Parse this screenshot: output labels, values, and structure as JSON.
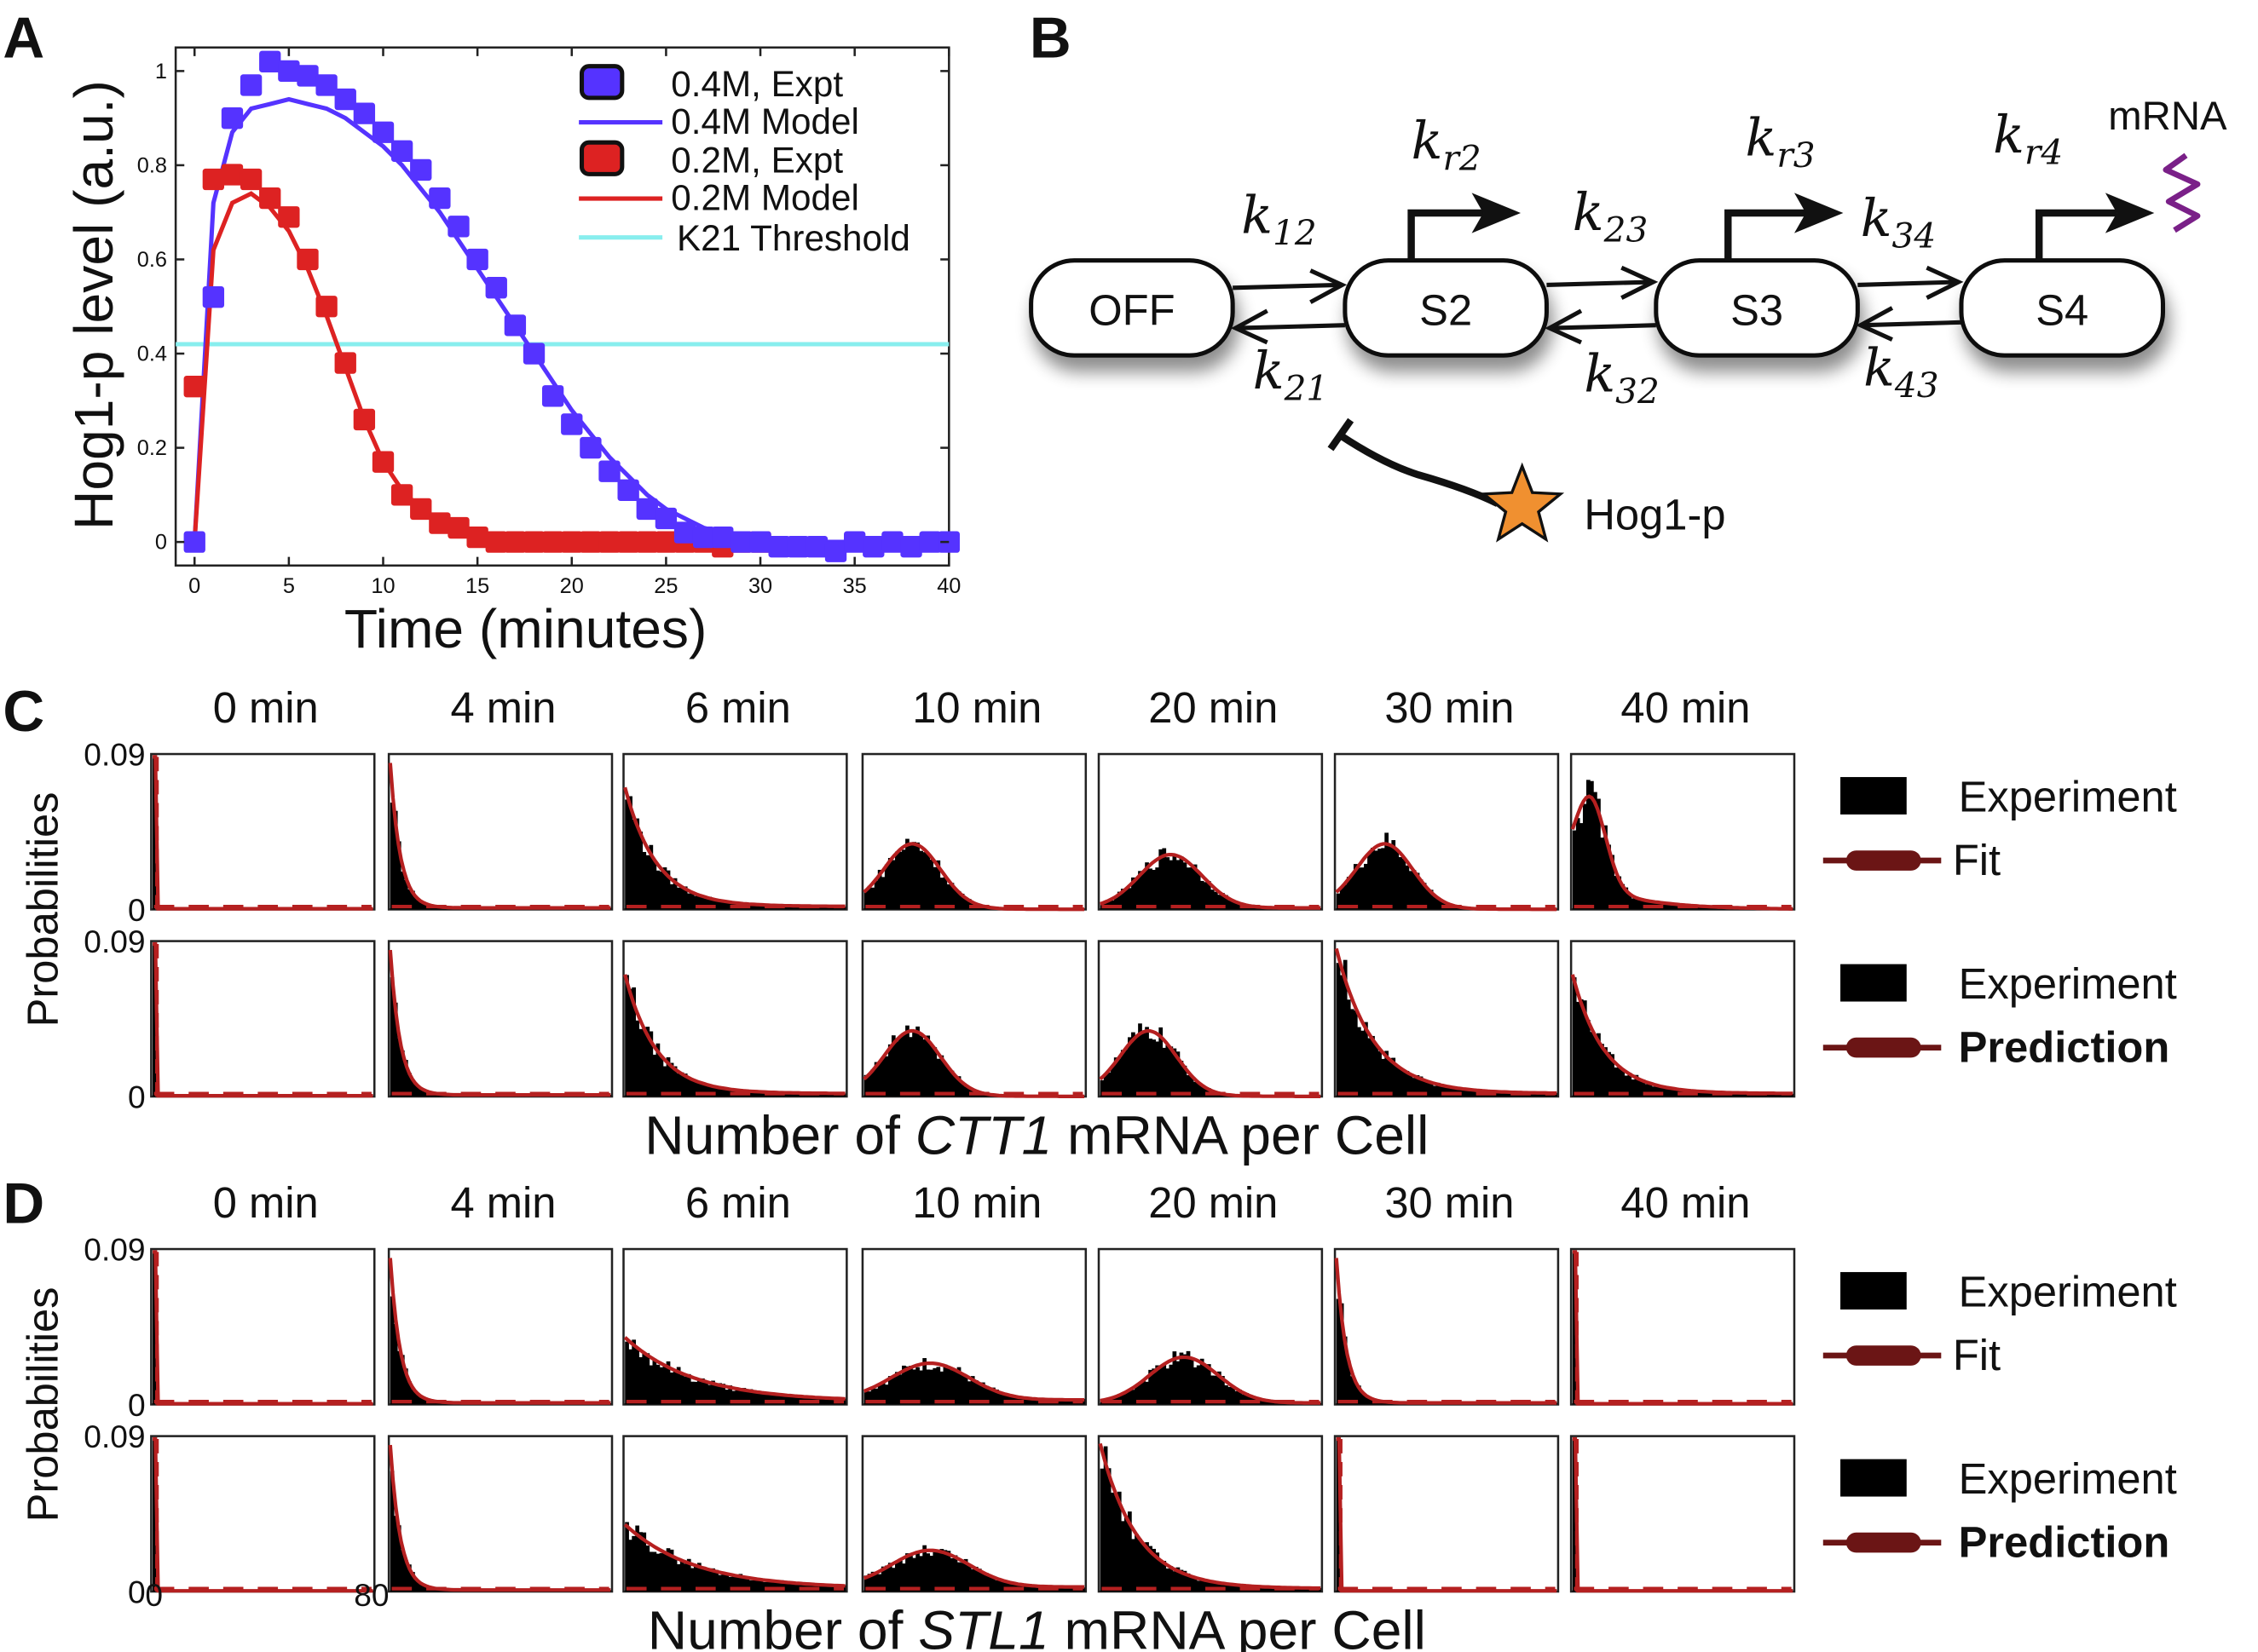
{
  "panels": {
    "A": "A",
    "B": "B",
    "C": "C",
    "D": "D"
  },
  "colors": {
    "blue": "#5533ff",
    "red": "#dd2222",
    "cyan": "#88eeee",
    "fit": "#b52020",
    "legend_line": "#6b1515",
    "star": "#f09030",
    "squiggle": "#7a2088"
  },
  "chart_data": [
    {
      "type": "line",
      "panel": "A",
      "title": "",
      "xlabel": "Time (minutes)",
      "ylabel": "Hog1-p level (a.u.)",
      "xlim": [
        -1,
        40
      ],
      "ylim": [
        -0.05,
        1.05
      ],
      "xticks": [
        0,
        5,
        10,
        15,
        20,
        25,
        30,
        35,
        40
      ],
      "yticks": [
        0,
        0.2,
        0.4,
        0.6,
        0.8,
        1
      ],
      "ytick_labels": [
        "0",
        "0.2",
        "0.4",
        "0.6",
        "0.8",
        "1"
      ],
      "legend_position": "top-right",
      "series": [
        {
          "name": "0.4M, Expt",
          "kind": "points",
          "color": "#5533ff",
          "x": [
            0,
            1,
            2,
            3,
            4,
            5,
            6,
            7,
            8,
            9,
            10,
            11,
            12,
            13,
            14,
            15,
            16,
            17,
            18,
            19,
            20,
            21,
            22,
            23,
            24,
            25,
            26,
            27,
            28,
            29,
            30,
            31,
            32,
            33,
            34,
            35,
            36,
            37,
            38,
            39,
            40
          ],
          "y": [
            0,
            0.52,
            0.9,
            0.97,
            1.02,
            1.0,
            0.99,
            0.97,
            0.94,
            0.91,
            0.87,
            0.83,
            0.79,
            0.73,
            0.67,
            0.6,
            0.54,
            0.46,
            0.4,
            0.31,
            0.25,
            0.2,
            0.15,
            0.11,
            0.07,
            0.05,
            0.02,
            0.01,
            0.01,
            0.0,
            0.0,
            -0.01,
            -0.01,
            -0.01,
            -0.02,
            0.0,
            -0.01,
            0.0,
            -0.01,
            0.0,
            0.0
          ]
        },
        {
          "name": "0.4M Model",
          "kind": "line",
          "color": "#5533ff",
          "x": [
            0,
            1,
            2,
            3,
            4,
            5,
            6,
            7,
            8,
            9,
            10,
            11,
            12,
            13,
            14,
            15,
            16,
            17,
            18,
            19,
            20,
            21,
            22,
            23,
            24,
            25,
            26,
            27,
            28,
            29,
            30,
            31,
            32,
            33,
            34,
            35,
            36,
            37,
            38,
            39,
            40
          ],
          "y": [
            0,
            0.72,
            0.87,
            0.92,
            0.93,
            0.94,
            0.93,
            0.92,
            0.9,
            0.87,
            0.84,
            0.8,
            0.75,
            0.7,
            0.64,
            0.58,
            0.52,
            0.46,
            0.4,
            0.34,
            0.28,
            0.23,
            0.18,
            0.14,
            0.1,
            0.07,
            0.05,
            0.03,
            0.02,
            0.01,
            0.005,
            0.002,
            0.001,
            0,
            0,
            0,
            0,
            0,
            0,
            0,
            0
          ]
        },
        {
          "name": "0.2M, Expt",
          "kind": "points",
          "color": "#dd2222",
          "x": [
            0,
            1,
            2,
            3,
            4,
            5,
            6,
            7,
            8,
            9,
            10,
            11,
            12,
            13,
            14,
            15,
            16,
            17,
            18,
            19,
            20,
            21,
            22,
            23,
            24,
            25,
            26,
            27,
            28,
            29,
            30
          ],
          "y": [
            0.33,
            0.77,
            0.78,
            0.77,
            0.73,
            0.69,
            0.6,
            0.5,
            0.38,
            0.26,
            0.17,
            0.1,
            0.07,
            0.04,
            0.03,
            0.01,
            0.0,
            0.0,
            0.0,
            0.0,
            0.0,
            0.0,
            0.0,
            0.0,
            0.0,
            0.0,
            0.0,
            0.0,
            -0.01,
            0.0,
            0.0
          ]
        },
        {
          "name": "0.2M Model",
          "kind": "line",
          "color": "#dd2222",
          "x": [
            0,
            1,
            2,
            3,
            4,
            5,
            6,
            7,
            8,
            9,
            10,
            11,
            12,
            13,
            14,
            15,
            16,
            17,
            18,
            19,
            20,
            21,
            22,
            23,
            24,
            25,
            26,
            27,
            28,
            29,
            30
          ],
          "y": [
            0,
            0.62,
            0.72,
            0.74,
            0.71,
            0.66,
            0.58,
            0.48,
            0.37,
            0.26,
            0.17,
            0.11,
            0.07,
            0.04,
            0.025,
            0.015,
            0.008,
            0.004,
            0.002,
            0.001,
            0,
            0,
            0,
            0,
            0,
            0,
            0,
            0,
            0,
            0,
            0
          ]
        },
        {
          "name": "K21 Threshold",
          "kind": "hline",
          "color": "#88eeee",
          "y": 0.42
        }
      ]
    },
    {
      "type": "diagram",
      "panel": "B",
      "states": [
        "OFF",
        "S2",
        "S3",
        "S4"
      ],
      "rates": {
        "k12": "12",
        "k21": "21",
        "k23": "23",
        "k32": "32",
        "k34": "34",
        "k43": "43",
        "kr2": "r2",
        "kr3": "r3",
        "kr4": "r4"
      },
      "output": "mRNA",
      "regulator": "Hog1-p"
    },
    {
      "type": "histogram",
      "panel": "C",
      "gene": "CTT1",
      "times": [
        "0 min",
        "4 min",
        "6 min",
        "10 min",
        "20 min",
        "30 min",
        "40 min"
      ],
      "ylabel": "Probabilities",
      "ytick_top": "0.09",
      "ytick_bottom": "0",
      "xlabel_prefix": "Number of ",
      "xlabel_suffix": " mRNA per Cell",
      "legend_rows": [
        {
          "bar_label": "Experiment",
          "line_label": "Fit"
        },
        {
          "bar_label": "Experiment",
          "line_label": "Prediction"
        }
      ],
      "rows": [
        {
          "shapes": [
            "spike",
            "decay-fast",
            "decay-med",
            "hump",
            "hump-wide",
            "hump",
            "peak-early"
          ]
        },
        {
          "shapes": [
            "spike",
            "decay-fast",
            "decay-med",
            "hump",
            "hump",
            "decay-tall",
            "decay-med"
          ]
        }
      ]
    },
    {
      "type": "histogram",
      "panel": "D",
      "gene": "STL1",
      "times": [
        "0 min",
        "4 min",
        "6 min",
        "10 min",
        "20 min",
        "30 min",
        "40 min"
      ],
      "ylabel": "Probabilities",
      "ytick_top": "0.09",
      "ytick_bottom": "0",
      "xtick_left": "0",
      "xtick_right": "80",
      "xlabel_prefix": "Number of ",
      "xlabel_suffix": " mRNA per Cell",
      "legend_rows": [
        {
          "bar_label": "Experiment",
          "line_label": "Fit"
        },
        {
          "bar_label": "Experiment",
          "line_label": "Prediction"
        }
      ],
      "rows": [
        {
          "shapes": [
            "spike",
            "decay-fast",
            "decay-long",
            "hump-low",
            "hump-low-mid",
            "decay-fast",
            "spike"
          ]
        },
        {
          "shapes": [
            "spike",
            "decay-fast",
            "decay-long",
            "hump-low",
            "decay-tall",
            "spike",
            "spike"
          ]
        }
      ]
    }
  ]
}
